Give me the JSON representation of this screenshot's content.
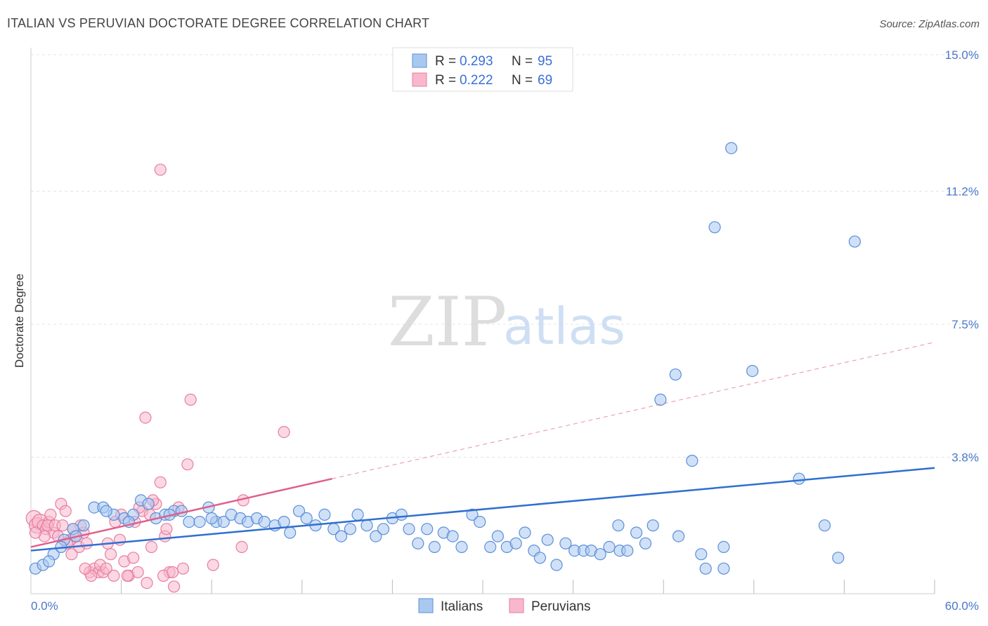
{
  "chart_data": {
    "type": "scatter",
    "title": "ITALIAN VS PERUVIAN DOCTORATE DEGREE CORRELATION CHART",
    "source": "Source: ZipAtlas.com",
    "xlabel": "",
    "ylabel": "Doctorate Degree",
    "xlim": [
      0,
      60
    ],
    "ylim": [
      0,
      15
    ],
    "x_tick_labels": [
      "0.0%",
      "60.0%"
    ],
    "y_ticks": [
      3.8,
      7.5,
      11.2,
      15.0
    ],
    "y_tick_labels": [
      "3.8%",
      "7.5%",
      "11.2%",
      "15.0%"
    ],
    "grid": true,
    "watermark": {
      "zip": "ZIP",
      "atlas": "atlas"
    },
    "legend": {
      "position": "top-center",
      "entries": [
        {
          "r_label": "R =",
          "r_value": "0.293",
          "n_label": "N =",
          "n_value": "95"
        },
        {
          "r_label": "R =",
          "r_value": "0.222",
          "n_label": "N =",
          "n_value": "69"
        }
      ]
    },
    "bottom_legend": [
      "Italians",
      "Peruvians"
    ],
    "colors": {
      "italians_fill": "#a9c8f0",
      "italians_stroke": "#5b8fd8",
      "italians_line": "#2f6fd0",
      "peruvians_fill": "#f7b8cc",
      "peruvians_stroke": "#e87da0",
      "peruvians_line": "#e0608a"
    },
    "series": [
      {
        "name": "Italians",
        "trend": {
          "x0": 0,
          "y0": 1.2,
          "x1": 60,
          "y1": 3.5
        },
        "points": [
          [
            0.3,
            0.7
          ],
          [
            0.8,
            0.8
          ],
          [
            1.5,
            1.1
          ],
          [
            2.2,
            1.5
          ],
          [
            2.8,
            1.8
          ],
          [
            3.5,
            1.9
          ],
          [
            4.2,
            2.4
          ],
          [
            4.8,
            2.4
          ],
          [
            5.5,
            2.2
          ],
          [
            6.2,
            2.1
          ],
          [
            6.8,
            2.2
          ],
          [
            7.3,
            2.6
          ],
          [
            7.8,
            2.5
          ],
          [
            8.3,
            2.1
          ],
          [
            8.9,
            2.2
          ],
          [
            9.5,
            2.3
          ],
          [
            10.0,
            2.3
          ],
          [
            10.5,
            2.0
          ],
          [
            11.2,
            2.0
          ],
          [
            11.8,
            2.4
          ],
          [
            12.3,
            2.0
          ],
          [
            12.8,
            2.0
          ],
          [
            13.3,
            2.2
          ],
          [
            13.9,
            2.1
          ],
          [
            14.4,
            2.0
          ],
          [
            15.0,
            2.1
          ],
          [
            15.5,
            2.0
          ],
          [
            16.2,
            1.9
          ],
          [
            16.8,
            2.0
          ],
          [
            17.2,
            1.7
          ],
          [
            17.8,
            2.3
          ],
          [
            18.3,
            2.1
          ],
          [
            18.9,
            1.9
          ],
          [
            19.5,
            2.2
          ],
          [
            20.1,
            1.8
          ],
          [
            20.6,
            1.6
          ],
          [
            21.2,
            1.8
          ],
          [
            21.7,
            2.2
          ],
          [
            22.3,
            1.9
          ],
          [
            22.9,
            1.6
          ],
          [
            23.4,
            1.8
          ],
          [
            24.0,
            2.1
          ],
          [
            24.6,
            2.2
          ],
          [
            25.1,
            1.8
          ],
          [
            25.7,
            1.4
          ],
          [
            26.3,
            1.8
          ],
          [
            26.8,
            1.3
          ],
          [
            27.4,
            1.7
          ],
          [
            28.0,
            1.6
          ],
          [
            28.6,
            1.3
          ],
          [
            29.3,
            2.2
          ],
          [
            29.8,
            2.0
          ],
          [
            30.5,
            1.3
          ],
          [
            31.0,
            1.6
          ],
          [
            31.6,
            1.3
          ],
          [
            32.2,
            1.4
          ],
          [
            32.8,
            1.7
          ],
          [
            33.4,
            1.2
          ],
          [
            33.8,
            1.0
          ],
          [
            34.3,
            1.5
          ],
          [
            34.9,
            0.8
          ],
          [
            35.5,
            1.4
          ],
          [
            36.1,
            1.2
          ],
          [
            36.7,
            1.2
          ],
          [
            37.2,
            1.2
          ],
          [
            37.8,
            1.1
          ],
          [
            38.4,
            1.3
          ],
          [
            39.1,
            1.2
          ],
          [
            39.6,
            1.2
          ],
          [
            40.2,
            1.7
          ],
          [
            40.8,
            1.4
          ],
          [
            41.3,
            1.9
          ],
          [
            39.0,
            1.9
          ],
          [
            41.8,
            5.4
          ],
          [
            42.8,
            6.1
          ],
          [
            43.9,
            3.7
          ],
          [
            44.8,
            0.7
          ],
          [
            45.4,
            10.2
          ],
          [
            46.0,
            1.3
          ],
          [
            46.5,
            12.4
          ],
          [
            46.0,
            0.7
          ],
          [
            47.9,
            6.2
          ],
          [
            51.0,
            3.2
          ],
          [
            52.7,
            1.9
          ],
          [
            53.6,
            1.0
          ],
          [
            54.7,
            9.8
          ],
          [
            43.0,
            1.6
          ],
          [
            5.0,
            2.3
          ],
          [
            1.2,
            0.9
          ],
          [
            2.0,
            1.3
          ],
          [
            3.0,
            1.6
          ],
          [
            6.5,
            2.0
          ],
          [
            9.2,
            2.2
          ],
          [
            12.0,
            2.1
          ],
          [
            44.5,
            1.1
          ]
        ]
      },
      {
        "name": "Peruvians",
        "trend": {
          "x0": 0,
          "y0": 1.3,
          "x1": 20,
          "y1": 3.2
        },
        "trend_ext": {
          "x0": 20,
          "y0": 3.2,
          "x1": 60,
          "y1": 7.0
        },
        "points": [
          [
            0.2,
            2.1
          ],
          [
            0.4,
            1.9
          ],
          [
            0.6,
            2.0
          ],
          [
            0.8,
            1.9
          ],
          [
            1.0,
            1.8
          ],
          [
            1.2,
            2.0
          ],
          [
            1.5,
            1.7
          ],
          [
            1.8,
            1.6
          ],
          [
            2.0,
            2.5
          ],
          [
            2.3,
            2.3
          ],
          [
            2.6,
            1.5
          ],
          [
            2.9,
            1.6
          ],
          [
            3.2,
            1.3
          ],
          [
            3.5,
            1.7
          ],
          [
            3.7,
            1.4
          ],
          [
            3.9,
            0.6
          ],
          [
            4.2,
            0.7
          ],
          [
            4.5,
            0.6
          ],
          [
            4.8,
            0.6
          ],
          [
            5.1,
            1.4
          ],
          [
            5.3,
            1.1
          ],
          [
            5.6,
            2.0
          ],
          [
            5.9,
            1.5
          ],
          [
            6.2,
            0.9
          ],
          [
            6.5,
            0.5
          ],
          [
            6.8,
            1.0
          ],
          [
            7.1,
            0.6
          ],
          [
            7.4,
            2.3
          ],
          [
            7.7,
            0.3
          ],
          [
            8.0,
            1.3
          ],
          [
            8.3,
            2.5
          ],
          [
            8.6,
            3.1
          ],
          [
            8.9,
            1.6
          ],
          [
            9.2,
            0.6
          ],
          [
            9.5,
            0.2
          ],
          [
            9.8,
            2.4
          ],
          [
            10.1,
            0.7
          ],
          [
            10.4,
            3.6
          ],
          [
            10.6,
            5.4
          ],
          [
            12.1,
            0.8
          ],
          [
            14.1,
            2.6
          ],
          [
            14.0,
            1.3
          ],
          [
            16.8,
            4.5
          ],
          [
            8.6,
            11.8
          ],
          [
            7.6,
            4.9
          ],
          [
            1.1,
            1.9
          ],
          [
            2.4,
            1.4
          ],
          [
            3.3,
            1.9
          ],
          [
            4.0,
            0.5
          ],
          [
            4.6,
            0.8
          ],
          [
            5.0,
            0.7
          ],
          [
            6.0,
            2.2
          ],
          [
            6.9,
            2.0
          ],
          [
            7.9,
            2.2
          ],
          [
            9.0,
            1.8
          ],
          [
            1.6,
            1.9
          ],
          [
            0.9,
            1.6
          ],
          [
            2.7,
            1.1
          ],
          [
            3.6,
            0.7
          ],
          [
            6.4,
            0.5
          ],
          [
            7.2,
            2.4
          ],
          [
            8.1,
            2.6
          ],
          [
            8.8,
            0.5
          ],
          [
            9.4,
            0.6
          ],
          [
            0.3,
            1.7
          ],
          [
            1.3,
            2.2
          ],
          [
            2.1,
            1.9
          ],
          [
            2.8,
            1.8
          ],
          [
            5.5,
            0.5
          ]
        ]
      }
    ]
  }
}
